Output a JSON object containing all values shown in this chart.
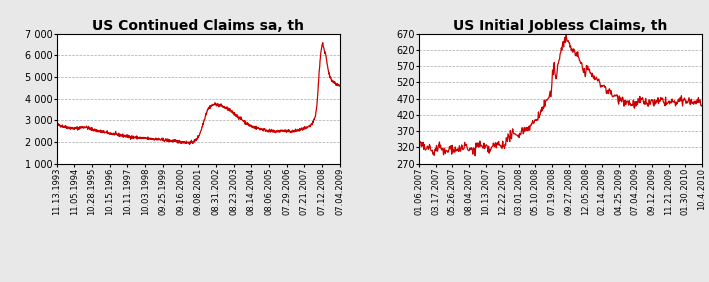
{
  "chart1": {
    "title": "US Continued Claims sa, th",
    "yticks": [
      1000,
      2000,
      3000,
      4000,
      5000,
      6000,
      7000
    ],
    "ylim": [
      1000,
      7000
    ],
    "xtick_labels": [
      "11.13.1993",
      "11.05.1994",
      "10.28.1995",
      "10.15.1996",
      "10.11.1997",
      "10.03.1998",
      "09.25.1999",
      "09.16.2000",
      "09.08.2001",
      "08.31.2002",
      "08.23.2003",
      "08.14.2004",
      "08.06.2005",
      "07.29.2006",
      "07.21.2007",
      "07.12.2008",
      "07.04.2009"
    ],
    "line_color": "#cc0000"
  },
  "chart2": {
    "title": "US Initial Jobless Claims, th",
    "yticks": [
      270,
      320,
      370,
      420,
      470,
      520,
      570,
      620,
      670
    ],
    "ylim": [
      270,
      670
    ],
    "xtick_labels": [
      "01.06.2007",
      "03.17.2007",
      "05.26.2007",
      "08.04.2007",
      "10.13.2007",
      "12.22.2007",
      "03.01.2008",
      "05.10.2008",
      "07.19.2008",
      "09.27.2008",
      "12.05.2008",
      "02.14.2009",
      "04.25.2009",
      "07.04.2009",
      "09.12.2009",
      "11.21.2009",
      "01.30.2010",
      "10.4.2010"
    ],
    "line_color": "#cc0000"
  },
  "bg_color": "#e8e8e8",
  "plot_bg_color": "#ffffff",
  "grid_color": "#aaaaaa",
  "title_fontsize": 10,
  "tick_fontsize": 6,
  "ytick_fontsize": 7
}
